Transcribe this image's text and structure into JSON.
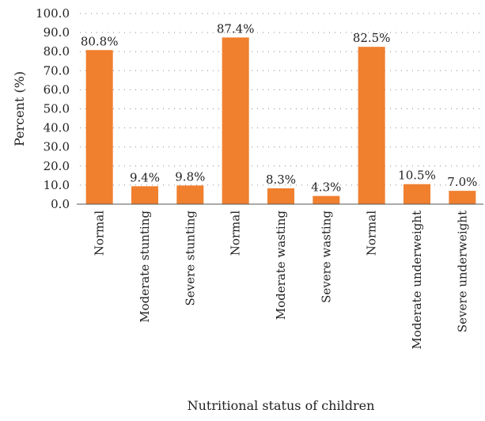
{
  "chart_data": {
    "type": "bar",
    "title": "",
    "xlabel": "Nutritional status of children",
    "ylabel": "Percent (%)",
    "ylim": [
      0,
      100
    ],
    "yticks": [
      "0.0",
      "10.0",
      "20.0",
      "30.0",
      "40.0",
      "50.0",
      "60.0",
      "70.0",
      "80.0",
      "90.0",
      "100.0"
    ],
    "grid": "horizontal dotted",
    "categories": [
      "Normal",
      "Moderate stunting",
      "Severe stunting",
      "Normal",
      "Moderate wasting",
      "Severe wasting",
      "Normal",
      "Moderate underweight",
      "Severe underweight"
    ],
    "values": [
      80.8,
      9.4,
      9.8,
      87.4,
      8.3,
      4.3,
      82.5,
      10.5,
      7.0
    ],
    "data_labels": [
      "80.8%",
      "9.4%",
      "9.8%",
      "87.4%",
      "8.3%",
      "4.3%",
      "82.5%",
      "10.5%",
      "7.0%"
    ],
    "bar_color": "#F07F2E"
  }
}
